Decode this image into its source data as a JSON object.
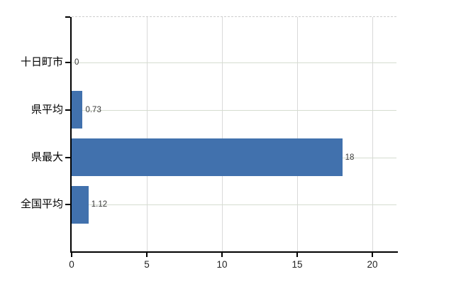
{
  "chart_data": {
    "type": "bar",
    "orientation": "horizontal",
    "title": "",
    "categories": [
      "十日町市",
      "県平均",
      "県最大",
      "全国平均"
    ],
    "values": [
      0,
      0.73,
      18,
      1.12
    ],
    "value_labels": [
      "0",
      "0.73",
      "18",
      "1.12"
    ],
    "x_tick_labels": [
      "0",
      "5",
      "10",
      "15",
      "20"
    ],
    "x_tick_values": [
      0,
      5,
      10,
      15,
      20
    ],
    "xlim": [
      0,
      21.6
    ],
    "grid": true,
    "legend": false,
    "colors": {
      "bar": "#4171ad",
      "grid_vertical": "#d9d9d9",
      "grid_horizontal": "#d5dccf",
      "axis": "#000000",
      "plot_top_border": "#cccccc",
      "category_text": "#000000",
      "value_text": "#3a3a3a",
      "tick_text": "#222222",
      "background": "#ffffff"
    }
  }
}
